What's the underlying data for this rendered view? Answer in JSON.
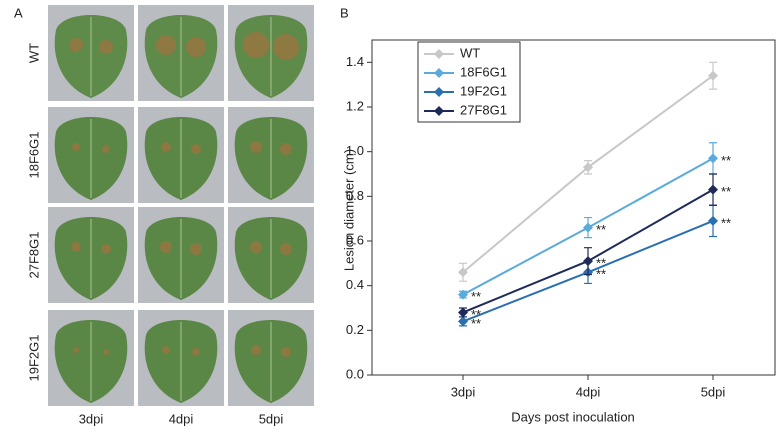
{
  "panel_a": {
    "label": "A",
    "rows": [
      "WT",
      "18F6G1",
      "27F8G1",
      "19F2G1"
    ],
    "columns": [
      "3dpi",
      "4dpi",
      "5dpi"
    ]
  },
  "chart_data": {
    "type": "line",
    "panel_label": "B",
    "x_label": "Days post inoculation",
    "y_label": "Lesion diameter (cm)",
    "categories": [
      "3dpi",
      "4dpi",
      "5dpi"
    ],
    "ylim": [
      0,
      1.5
    ],
    "yticks": [
      {
        "value": 0,
        "label": "0.0"
      },
      0.2,
      0.4,
      0.6,
      0.8,
      {
        "value": 1,
        "label": "1.0"
      },
      1.2,
      1.4
    ],
    "legend": "upper left",
    "series": [
      {
        "name": "WT",
        "color": "#c8c8c8",
        "values": [
          0.46,
          0.93,
          1.34
        ],
        "errors": [
          0.04,
          0.03,
          0.06
        ]
      },
      {
        "name": "18F6G1",
        "color": "#5aaadc",
        "values": [
          0.36,
          0.66,
          0.97
        ],
        "errors": [
          0.015,
          0.045,
          0.07
        ],
        "significance": [
          "**",
          "**",
          "**"
        ]
      },
      {
        "name": "19F2G1",
        "color": "#2a6fb0",
        "values": [
          0.24,
          0.46,
          0.69
        ],
        "errors": [
          0.02,
          0.05,
          0.07
        ],
        "significance": [
          "**",
          "**",
          "**"
        ]
      },
      {
        "name": "27F8G1",
        "color": "#1e2a5a",
        "values": [
          0.28,
          0.51,
          0.83
        ],
        "errors": [
          0.02,
          0.06,
          0.07
        ],
        "significance": [
          "**",
          "**",
          "**"
        ]
      }
    ]
  }
}
